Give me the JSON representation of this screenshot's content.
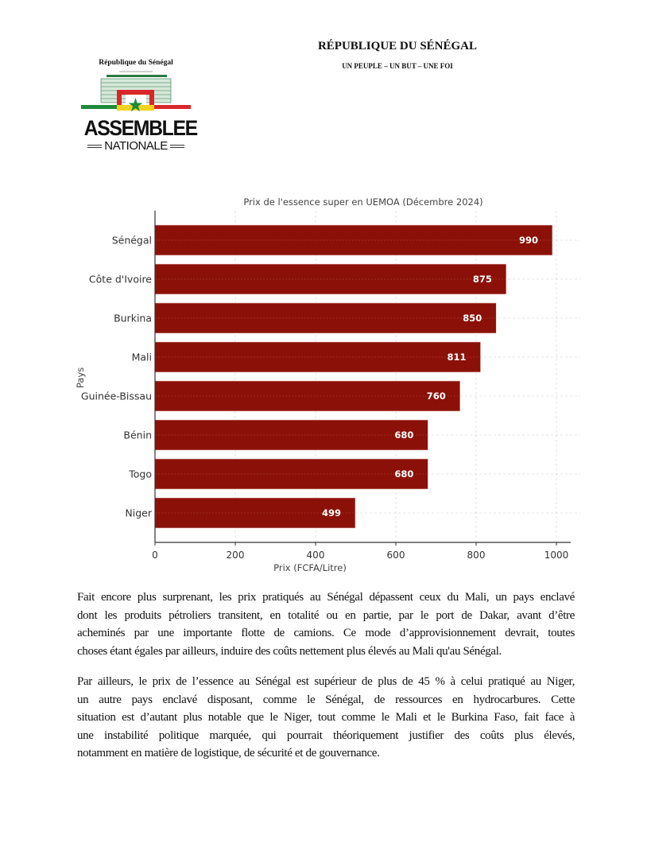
{
  "header": {
    "title": "RÉPUBLIQUE DU SÉNÉGAL",
    "motto": "UN PEUPLE – UN BUT – UNE FOI"
  },
  "logo": {
    "top_text": "République du Sénégal",
    "small_motto": "Un Peuple - Un But - Une Foi",
    "main_text": "ASSEMBLEE",
    "sub_text": "NATIONALE",
    "colors": {
      "green": "#1f8a3b",
      "yellow": "#f2d21b",
      "red": "#d9262a"
    }
  },
  "chart_data": {
    "type": "bar",
    "orientation": "horizontal",
    "title": "Prix de l'essence super en UEMOA (Décembre 2024)",
    "xlabel": "Prix (FCFA/Litre)",
    "ylabel": "Pays",
    "categories": [
      "Sénégal",
      "Côte d'Ivoire",
      "Burkina",
      "Mali",
      "Guinée-Bissau",
      "Bénin",
      "Togo",
      "Niger"
    ],
    "values": [
      990,
      875,
      850,
      811,
      760,
      680,
      680,
      499
    ],
    "data_labels": [
      "990",
      "875",
      "850",
      "811",
      "760",
      "680",
      "680",
      "499"
    ],
    "xticks": [
      "0",
      "200",
      "400",
      "600",
      "800",
      "1000"
    ],
    "xlim": [
      0,
      1040
    ],
    "grid": true,
    "bar_color": "#8b1108"
  },
  "body": {
    "paragraphs": [
      [
        "Fait encore plus surprenant, les prix pratiqués au Sénégal dépassent ceux du Mali, un pays enclavé",
        "dont les produits pétroliers transitent, en totalité ou en partie, par le port de Dakar, avant d’être",
        "acheminés par une importante flotte de camions. Ce mode d’approvisionnement devrait, toutes",
        "choses étant égales par ailleurs, induire des coûts nettement plus élevés au Mali qu'au Sénégal."
      ],
      [
        "Par ailleurs, le prix de l’essence au Sénégal est supérieur de plus de 45 % à celui pratiqué au Niger,",
        "un autre pays enclavé disposant, comme le Sénégal, de ressources en hydrocarbures. Cette",
        "situation est d’autant plus notable que le Niger, tout comme le Mali et le Burkina Faso, fait face à",
        "une instabilité politique marquée, qui pourrait théoriquement justifier des coûts plus élevés,",
        "notamment en matière de logistique, de sécurité et de gouvernance."
      ]
    ]
  }
}
